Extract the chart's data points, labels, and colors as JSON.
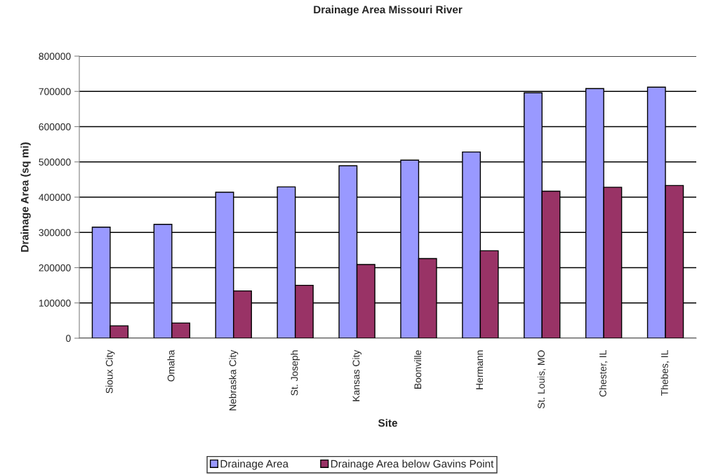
{
  "chart_data": {
    "type": "bar",
    "title": "Drainage Area Missouri River",
    "xlabel": "Site",
    "ylabel": "Drainage Area (sq mi)",
    "categories": [
      "Sioux City",
      "Omaha",
      "Nebraska City",
      "St. Joseph",
      "Kansas City",
      "Boonville",
      "Hermann",
      "St. Louis, MO",
      "Chester, IL",
      "Thebes, IL"
    ],
    "series": [
      {
        "name": "Drainage Area",
        "color": "#9999ff",
        "values": [
          315000,
          323000,
          414000,
          429000,
          489000,
          505000,
          528000,
          696000,
          708000,
          712000
        ]
      },
      {
        "name": "Drainage Area below Gavins Point",
        "color": "#993366",
        "values": [
          35000,
          43000,
          134000,
          150000,
          209000,
          226000,
          248000,
          417000,
          428000,
          433000
        ]
      }
    ],
    "ylim": [
      0,
      800000
    ],
    "yticks": [
      0,
      100000,
      200000,
      300000,
      400000,
      500000,
      600000,
      700000,
      800000
    ],
    "grid": "y",
    "legend": "bottom"
  }
}
